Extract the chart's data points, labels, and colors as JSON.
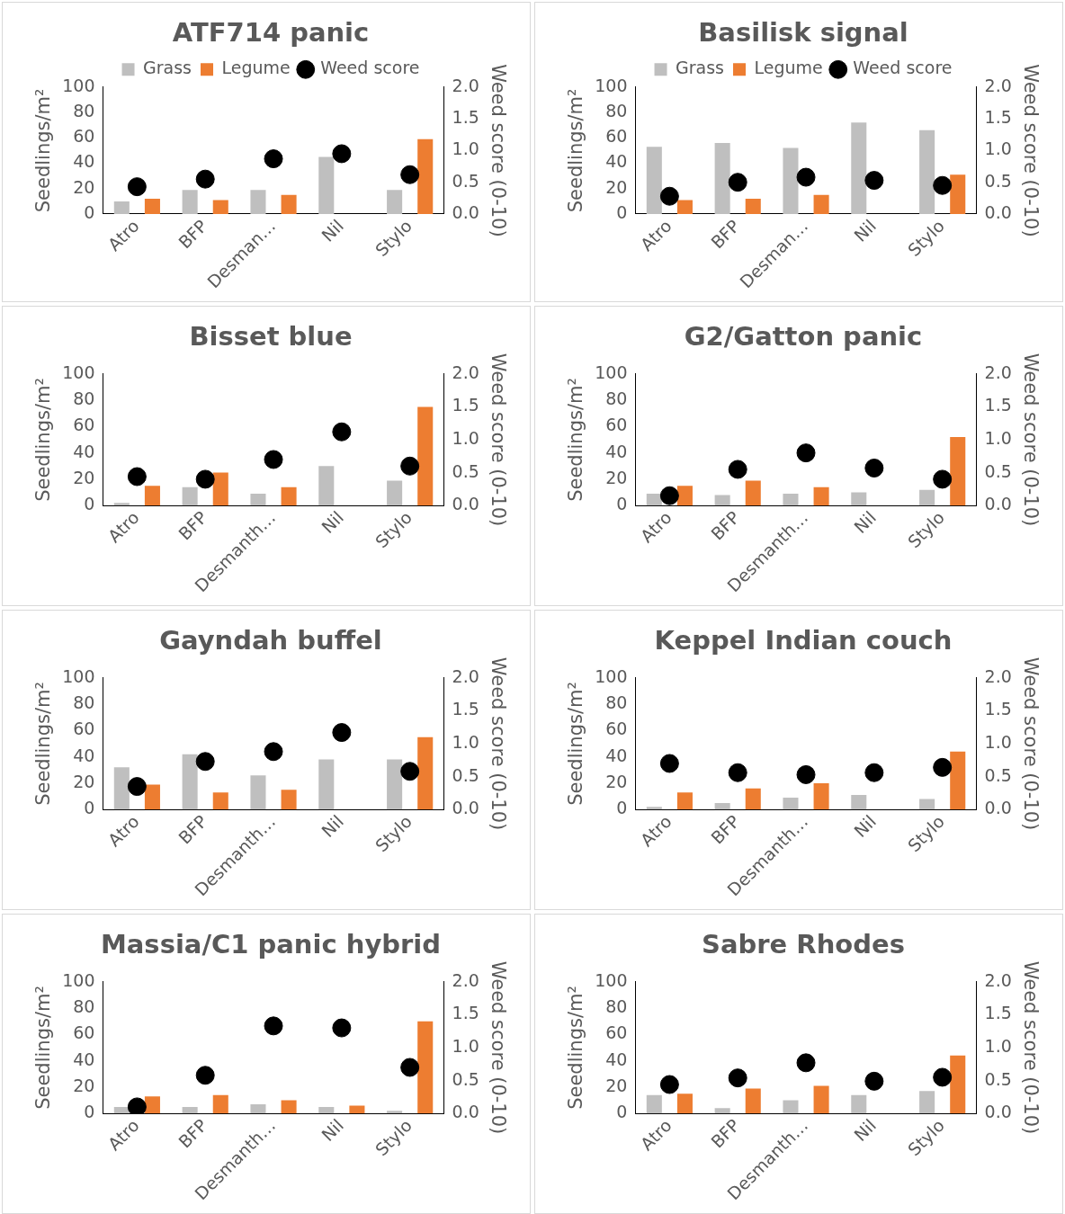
{
  "chart_data": [
    {
      "type": "bar",
      "title": "ATF714 panic",
      "categories": [
        "Atro",
        "BFP",
        "Desman…",
        "Nil",
        "Stylo"
      ],
      "ylabel": "Seedlings/m²",
      "y2label": "Weed score (0-10)",
      "ylim": [
        0,
        100
      ],
      "yticks": [
        0,
        20,
        40,
        60,
        80,
        100
      ],
      "y2lim": [
        0,
        2
      ],
      "y2ticks": [
        {
          "value": 0,
          "label": "0.0"
        },
        {
          "value": 0.5,
          "label": "0.5"
        },
        {
          "value": 1,
          "label": "1.0"
        },
        {
          "value": 1.5,
          "label": "1.5"
        },
        {
          "value": 2,
          "label": "2.0"
        }
      ],
      "grid": false,
      "legend": "top",
      "series": [
        {
          "name": "Grass",
          "color": "#bfbfbf",
          "values": [
            10,
            19,
            19,
            45,
            19
          ]
        },
        {
          "name": "Legume",
          "color": "#ed7d31",
          "values": [
            12,
            11,
            15,
            null,
            59
          ]
        },
        {
          "name": "Weed score",
          "type": "scatter",
          "axis": "y2",
          "marker": "circle",
          "color": "#000000",
          "values": [
            0.43,
            0.55,
            0.87,
            0.95,
            0.62
          ]
        }
      ]
    },
    {
      "type": "bar",
      "title": "Basilisk signal",
      "categories": [
        "Atro",
        "BFP",
        "Desman…",
        "Nil",
        "Stylo"
      ],
      "ylabel": "Seedlings/m²",
      "y2label": "Weed score (0-10)",
      "ylim": [
        0,
        100
      ],
      "yticks": [
        0,
        20,
        40,
        60,
        80,
        100
      ],
      "y2lim": [
        0,
        2
      ],
      "y2ticks": [
        {
          "value": 0,
          "label": "0.0"
        },
        {
          "value": 0.5,
          "label": "0.5"
        },
        {
          "value": 1,
          "label": "1.0"
        },
        {
          "value": 1.5,
          "label": "1.5"
        },
        {
          "value": 2,
          "label": "2.0"
        }
      ],
      "grid": false,
      "legend": "top",
      "series": [
        {
          "name": "Grass",
          "color": "#bfbfbf",
          "values": [
            53,
            56,
            52,
            72,
            66
          ]
        },
        {
          "name": "Legume",
          "color": "#ed7d31",
          "values": [
            11,
            12,
            15,
            null,
            31
          ]
        },
        {
          "name": "Weed score",
          "type": "scatter",
          "axis": "y2",
          "marker": "circle",
          "color": "#000000",
          "values": [
            0.28,
            0.5,
            0.58,
            0.53,
            0.45
          ]
        }
      ]
    },
    {
      "type": "bar",
      "title": "Bisset blue",
      "categories": [
        "Atro",
        "BFP",
        "Desmanth…",
        "Nil",
        "Stylo"
      ],
      "ylabel": "Seedlings/m²",
      "y2label": "Weed score (0-10)",
      "ylim": [
        0,
        100
      ],
      "yticks": [
        0,
        20,
        40,
        60,
        80,
        100
      ],
      "y2lim": [
        0,
        2
      ],
      "y2ticks": [
        {
          "value": 0,
          "label": "0.0"
        },
        {
          "value": 0.5,
          "label": "0.5"
        },
        {
          "value": 1,
          "label": "1.0"
        },
        {
          "value": 1.5,
          "label": "1.5"
        },
        {
          "value": 2,
          "label": "2.0"
        }
      ],
      "grid": false,
      "series": [
        {
          "color": "#bfbfbf",
          "values": [
            2,
            14,
            9,
            30,
            19
          ]
        },
        {
          "color": "#ed7d31",
          "values": [
            15,
            25,
            14,
            null,
            75
          ]
        },
        {
          "type": "scatter",
          "axis": "y2",
          "marker": "circle",
          "color": "#000000",
          "values": [
            0.44,
            0.4,
            0.7,
            1.12,
            0.6
          ]
        }
      ]
    },
    {
      "type": "bar",
      "title": "G2/Gatton panic",
      "categories": [
        "Atro",
        "BFP",
        "Desmanth…",
        "Nil",
        "Stylo"
      ],
      "ylabel": "Seedlings/m²",
      "y2label": "Weed score (0-10)",
      "ylim": [
        0,
        100
      ],
      "yticks": [
        0,
        20,
        40,
        60,
        80,
        100
      ],
      "y2lim": [
        0,
        2
      ],
      "y2ticks": [
        {
          "value": 0,
          "label": "0.0"
        },
        {
          "value": 0.5,
          "label": "0.5"
        },
        {
          "value": 1,
          "label": "1.0"
        },
        {
          "value": 1.5,
          "label": "1.5"
        },
        {
          "value": 2,
          "label": "2.0"
        }
      ],
      "grid": false,
      "series": [
        {
          "color": "#bfbfbf",
          "values": [
            9,
            8,
            9,
            10,
            12
          ]
        },
        {
          "color": "#ed7d31",
          "values": [
            15,
            19,
            14,
            null,
            52
          ]
        },
        {
          "type": "scatter",
          "axis": "y2",
          "marker": "circle",
          "color": "#000000",
          "values": [
            0.15,
            0.55,
            0.8,
            0.57,
            0.4
          ]
        }
      ]
    },
    {
      "type": "bar",
      "title": "Gayndah buffel",
      "categories": [
        "Atro",
        "BFP",
        "Desmanth…",
        "Nil",
        "Stylo"
      ],
      "ylabel": "Seedlings/m²",
      "y2label": "Weed score (0-10)",
      "ylim": [
        0,
        100
      ],
      "yticks": [
        0,
        20,
        40,
        60,
        80,
        100
      ],
      "y2lim": [
        0,
        2
      ],
      "y2ticks": [
        {
          "value": 0,
          "label": "0.0"
        },
        {
          "value": 0.5,
          "label": "0.5"
        },
        {
          "value": 1,
          "label": "1.0"
        },
        {
          "value": 1.5,
          "label": "1.5"
        },
        {
          "value": 2,
          "label": "2.0"
        }
      ],
      "grid": false,
      "series": [
        {
          "color": "#bfbfbf",
          "values": [
            32,
            42,
            26,
            38,
            38
          ]
        },
        {
          "color": "#ed7d31",
          "values": [
            19,
            13,
            15,
            null,
            55
          ]
        },
        {
          "type": "scatter",
          "axis": "y2",
          "marker": "circle",
          "color": "#000000",
          "values": [
            0.35,
            0.73,
            0.88,
            1.17,
            0.58
          ]
        }
      ]
    },
    {
      "type": "bar",
      "title": "Keppel Indian couch",
      "categories": [
        "Atro",
        "BFP",
        "Desmanth…",
        "Nil",
        "Stylo"
      ],
      "ylabel": "Seedlings/m²",
      "y2label": "Weed score (0-10)",
      "ylim": [
        0,
        100
      ],
      "yticks": [
        0,
        20,
        40,
        60,
        80,
        100
      ],
      "y2lim": [
        0,
        2
      ],
      "y2ticks": [
        {
          "value": 0,
          "label": "0.0"
        },
        {
          "value": 0.5,
          "label": "0.5"
        },
        {
          "value": 1,
          "label": "1.0"
        },
        {
          "value": 1.5,
          "label": "1.5"
        },
        {
          "value": 2,
          "label": "2.0"
        }
      ],
      "grid": false,
      "series": [
        {
          "color": "#bfbfbf",
          "values": [
            2,
            5,
            9,
            11,
            8
          ]
        },
        {
          "color": "#ed7d31",
          "values": [
            13,
            16,
            20,
            null,
            44
          ]
        },
        {
          "type": "scatter",
          "axis": "y2",
          "marker": "circle",
          "color": "#000000",
          "values": [
            0.7,
            0.56,
            0.53,
            0.56,
            0.64
          ]
        }
      ]
    },
    {
      "type": "bar",
      "title": "Massia/C1 panic hybrid",
      "categories": [
        "Atro",
        "BFP",
        "Desmanth…",
        "Nil",
        "Stylo"
      ],
      "ylabel": "Seedlings/m²",
      "y2label": "Weed score (0-10)",
      "ylim": [
        0,
        100
      ],
      "yticks": [
        0,
        20,
        40,
        60,
        80,
        100
      ],
      "y2lim": [
        0,
        2
      ],
      "y2ticks": [
        {
          "value": 0,
          "label": "0.0"
        },
        {
          "value": 0.5,
          "label": "0.5"
        },
        {
          "value": 1,
          "label": "1.0"
        },
        {
          "value": 1.5,
          "label": "1.5"
        },
        {
          "value": 2,
          "label": "2.0"
        }
      ],
      "grid": false,
      "series": [
        {
          "color": "#bfbfbf",
          "values": [
            5,
            5,
            7,
            5,
            2
          ]
        },
        {
          "color": "#ed7d31",
          "values": [
            13,
            14,
            10,
            6,
            70
          ]
        },
        {
          "type": "scatter",
          "axis": "y2",
          "marker": "circle",
          "color": "#000000",
          "values": [
            0.1,
            0.58,
            1.33,
            1.3,
            0.7
          ]
        }
      ]
    },
    {
      "type": "bar",
      "title": "Sabre Rhodes",
      "categories": [
        "Atro",
        "BFP",
        "Desmanth…",
        "Nil",
        "Stylo"
      ],
      "ylabel": "Seedlings/m²",
      "y2label": "Weed score (0-10)",
      "ylim": [
        0,
        100
      ],
      "yticks": [
        0,
        20,
        40,
        60,
        80,
        100
      ],
      "y2lim": [
        0,
        2
      ],
      "y2ticks": [
        {
          "value": 0,
          "label": "0.0"
        },
        {
          "value": 0.5,
          "label": "0.5"
        },
        {
          "value": 1,
          "label": "1.0"
        },
        {
          "value": 1.5,
          "label": "1.5"
        },
        {
          "value": 2,
          "label": "2.0"
        }
      ],
      "grid": false,
      "series": [
        {
          "color": "#bfbfbf",
          "values": [
            14,
            4,
            10,
            14,
            17
          ]
        },
        {
          "color": "#ed7d31",
          "values": [
            15,
            19,
            21,
            null,
            44
          ]
        },
        {
          "type": "scatter",
          "axis": "y2",
          "marker": "circle",
          "color": "#000000",
          "values": [
            0.44,
            0.54,
            0.77,
            0.49,
            0.55
          ]
        }
      ]
    }
  ]
}
